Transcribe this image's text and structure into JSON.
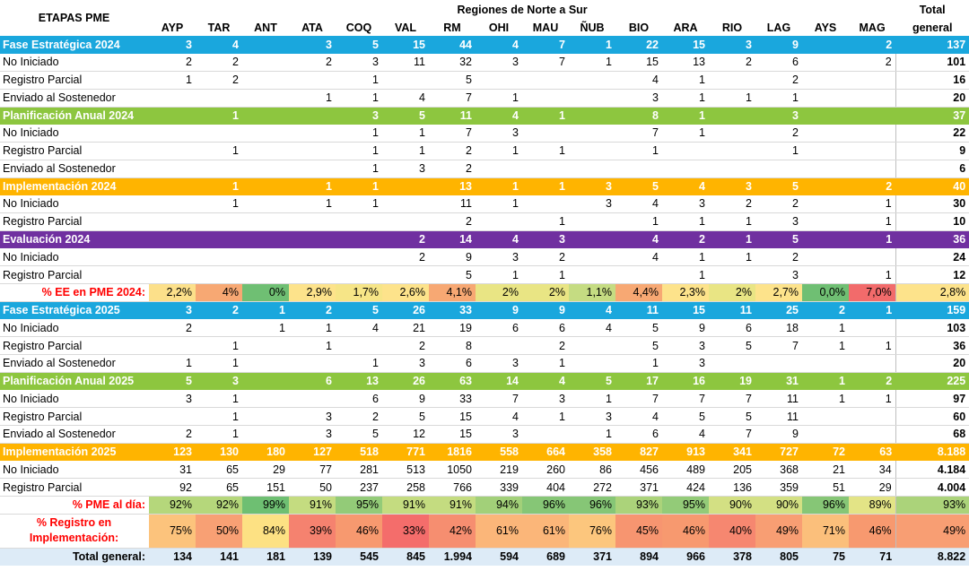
{
  "header": {
    "etapas": "ETAPAS PME",
    "regiones": "Regiones de Norte a Sur",
    "total_l1": "Total",
    "total_l2": "general",
    "columns": [
      "AYP",
      "TAR",
      "ANT",
      "ATA",
      "COQ",
      "VAL",
      "RM",
      "OHI",
      "MAU",
      "ÑUB",
      "BIO",
      "ARA",
      "RIO",
      "LAG",
      "AYS",
      "MAG"
    ]
  },
  "rows": [
    {
      "kind": "phase",
      "color": "est",
      "label": "Fase Estratégica 2024",
      "values": [
        "3",
        "4",
        "",
        "3",
        "5",
        "15",
        "44",
        "4",
        "7",
        "1",
        "22",
        "15",
        "3",
        "9",
        "",
        "2"
      ],
      "total": "137"
    },
    {
      "kind": "data",
      "label": "No Iniciado",
      "values": [
        "2",
        "2",
        "",
        "2",
        "3",
        "11",
        "32",
        "3",
        "7",
        "1",
        "15",
        "13",
        "2",
        "6",
        "",
        "2"
      ],
      "total": "101"
    },
    {
      "kind": "data",
      "label": "Registro Parcial",
      "values": [
        "1",
        "2",
        "",
        "",
        "1",
        "",
        "5",
        "",
        "",
        "",
        "4",
        "1",
        "",
        "2",
        "",
        ""
      ],
      "total": "16"
    },
    {
      "kind": "data",
      "label": "Enviado al Sostenedor",
      "values": [
        "",
        "",
        "",
        "1",
        "1",
        "4",
        "7",
        "1",
        "",
        "",
        "3",
        "1",
        "1",
        "1",
        "",
        ""
      ],
      "total": "20"
    },
    {
      "kind": "phase",
      "color": "plan",
      "label": "Planificación Anual 2024",
      "values": [
        "",
        "1",
        "",
        "",
        "3",
        "5",
        "11",
        "4",
        "1",
        "",
        "8",
        "1",
        "",
        "3",
        "",
        ""
      ],
      "total": "37"
    },
    {
      "kind": "data",
      "label": "No Iniciado",
      "values": [
        "",
        "",
        "",
        "",
        "1",
        "1",
        "7",
        "3",
        "",
        "",
        "7",
        "1",
        "",
        "2",
        "",
        ""
      ],
      "total": "22"
    },
    {
      "kind": "data",
      "label": "Registro Parcial",
      "values": [
        "",
        "1",
        "",
        "",
        "1",
        "1",
        "2",
        "1",
        "1",
        "",
        "1",
        "",
        "",
        "1",
        "",
        ""
      ],
      "total": "9"
    },
    {
      "kind": "data",
      "label": "Enviado al Sostenedor",
      "values": [
        "",
        "",
        "",
        "",
        "1",
        "3",
        "2",
        "",
        "",
        "",
        "",
        "",
        "",
        "",
        "",
        ""
      ],
      "total": "6"
    },
    {
      "kind": "phase",
      "color": "impl",
      "label": "Implementación 2024",
      "values": [
        "",
        "1",
        "",
        "1",
        "1",
        "",
        "13",
        "1",
        "1",
        "3",
        "5",
        "4",
        "3",
        "5",
        "",
        "2"
      ],
      "total": "40"
    },
    {
      "kind": "data",
      "label": "No Iniciado",
      "values": [
        "",
        "1",
        "",
        "1",
        "1",
        "",
        "11",
        "1",
        "",
        "3",
        "4",
        "3",
        "2",
        "2",
        "",
        "1"
      ],
      "total": "30"
    },
    {
      "kind": "data",
      "label": "Registro Parcial",
      "values": [
        "",
        "",
        "",
        "",
        "",
        "",
        "2",
        "",
        "1",
        "",
        "1",
        "1",
        "1",
        "3",
        "",
        "1"
      ],
      "total": "10"
    },
    {
      "kind": "phase",
      "color": "eval",
      "label": "Evaluación 2024",
      "values": [
        "",
        "",
        "",
        "",
        "",
        "2",
        "14",
        "4",
        "3",
        "",
        "4",
        "2",
        "1",
        "5",
        "",
        "1"
      ],
      "total": "36"
    },
    {
      "kind": "data",
      "label": "No Iniciado",
      "values": [
        "",
        "",
        "",
        "",
        "",
        "2",
        "9",
        "3",
        "2",
        "",
        "4",
        "1",
        "1",
        "2",
        "",
        ""
      ],
      "total": "24"
    },
    {
      "kind": "data",
      "label": "Registro Parcial",
      "values": [
        "",
        "",
        "",
        "",
        "",
        "",
        "5",
        "1",
        "1",
        "",
        "",
        "1",
        "",
        "3",
        "",
        "1"
      ],
      "total": "12"
    },
    {
      "kind": "pct",
      "label": "% EE en PME 2024:",
      "values": [
        "2,2%",
        "4%",
        "0%",
        "2,9%",
        "1,7%",
        "2,6%",
        "4,1%",
        "2%",
        "2%",
        "1,1%",
        "4,4%",
        "2,3%",
        "2%",
        "2,7%",
        "0,0%",
        "7,0%"
      ],
      "total": "2,8%",
      "colors": [
        "#fce08a",
        "#f7a873",
        "#6fbf73",
        "#fde38b",
        "#f6e587",
        "#fde38b",
        "#f7a873",
        "#e9e584",
        "#e9e584",
        "#c5dc82",
        "#f7a873",
        "#fde38b",
        "#e9e584",
        "#fde38b",
        "#6fbf73",
        "#f26b6b"
      ],
      "total_color": "#fde38b"
    },
    {
      "kind": "phase",
      "color": "est",
      "label": "Fase Estratégica 2025",
      "values": [
        "3",
        "2",
        "1",
        "2",
        "5",
        "26",
        "33",
        "9",
        "9",
        "4",
        "11",
        "15",
        "11",
        "25",
        "2",
        "1"
      ],
      "total": "159"
    },
    {
      "kind": "data",
      "label": "No Iniciado",
      "values": [
        "2",
        "",
        "1",
        "1",
        "4",
        "21",
        "19",
        "6",
        "6",
        "4",
        "5",
        "9",
        "6",
        "18",
        "1",
        ""
      ],
      "total": "103"
    },
    {
      "kind": "data",
      "label": "Registro Parcial",
      "values": [
        "",
        "1",
        "",
        "1",
        "",
        "2",
        "8",
        "",
        "2",
        "",
        "5",
        "3",
        "5",
        "7",
        "1",
        "1"
      ],
      "total": "36"
    },
    {
      "kind": "data",
      "label": "Enviado al Sostenedor",
      "values": [
        "1",
        "1",
        "",
        "",
        "1",
        "3",
        "6",
        "3",
        "1",
        "",
        "1",
        "3",
        "",
        "",
        "",
        ""
      ],
      "total": "20"
    },
    {
      "kind": "phase",
      "color": "plan",
      "label": "Planificación Anual 2025",
      "values": [
        "5",
        "3",
        "",
        "6",
        "13",
        "26",
        "63",
        "14",
        "4",
        "5",
        "17",
        "16",
        "19",
        "31",
        "1",
        "2"
      ],
      "total": "225"
    },
    {
      "kind": "data",
      "label": "No Iniciado",
      "values": [
        "3",
        "1",
        "",
        "",
        "6",
        "9",
        "33",
        "7",
        "3",
        "1",
        "7",
        "7",
        "7",
        "11",
        "1",
        "1"
      ],
      "total": "97"
    },
    {
      "kind": "data",
      "label": "Registro Parcial",
      "values": [
        "",
        "1",
        "",
        "3",
        "2",
        "5",
        "15",
        "4",
        "1",
        "3",
        "4",
        "5",
        "5",
        "11",
        "",
        ""
      ],
      "total": "60"
    },
    {
      "kind": "data",
      "label": "Enviado al Sostenedor",
      "values": [
        "2",
        "1",
        "",
        "3",
        "5",
        "12",
        "15",
        "3",
        "",
        "1",
        "6",
        "4",
        "7",
        "9",
        "",
        ""
      ],
      "total": "68"
    },
    {
      "kind": "phase",
      "color": "impl",
      "label": "Implementación 2025",
      "values": [
        "123",
        "130",
        "180",
        "127",
        "518",
        "771",
        "1816",
        "558",
        "664",
        "358",
        "827",
        "913",
        "341",
        "727",
        "72",
        "63"
      ],
      "total": "8.188"
    },
    {
      "kind": "data",
      "label": "No Iniciado",
      "values": [
        "31",
        "65",
        "29",
        "77",
        "281",
        "513",
        "1050",
        "219",
        "260",
        "86",
        "456",
        "489",
        "205",
        "368",
        "21",
        "34"
      ],
      "total": "4.184"
    },
    {
      "kind": "data",
      "label": "Registro Parcial",
      "values": [
        "92",
        "65",
        "151",
        "50",
        "237",
        "258",
        "766",
        "339",
        "404",
        "272",
        "371",
        "424",
        "136",
        "359",
        "51",
        "29"
      ],
      "total": "4.004"
    },
    {
      "kind": "pct",
      "label": "% PME al día:",
      "values": [
        "92%",
        "92%",
        "99%",
        "91%",
        "95%",
        "91%",
        "91%",
        "94%",
        "96%",
        "96%",
        "93%",
        "95%",
        "90%",
        "90%",
        "96%",
        "89%"
      ],
      "total": "93%",
      "colors": [
        "#b5d77b",
        "#b5d77b",
        "#6ebf72",
        "#c4dc80",
        "#93cb78",
        "#c4dc80",
        "#c4dc80",
        "#a2d079",
        "#86c676",
        "#86c676",
        "#abd37a",
        "#93cb78",
        "#d3e083",
        "#d3e083",
        "#86c676",
        "#e3e486"
      ],
      "total_color": "#abd37a"
    },
    {
      "kind": "pct2",
      "label": "% Registro en Implementación:",
      "values": [
        "75%",
        "50%",
        "84%",
        "39%",
        "46%",
        "33%",
        "42%",
        "61%",
        "61%",
        "76%",
        "45%",
        "46%",
        "40%",
        "49%",
        "71%",
        "46%"
      ],
      "total": "49%",
      "colors": [
        "#fcc37c",
        "#f8a074",
        "#fde183",
        "#f5826f",
        "#f7996f",
        "#f46d6b",
        "#f68e70",
        "#fbb679",
        "#fbb679",
        "#fcc67d",
        "#f79570",
        "#f7996f",
        "#f68770",
        "#f89e73",
        "#fbbf7b",
        "#f7996f"
      ],
      "total_color": "#f89e73"
    },
    {
      "kind": "total",
      "label": "Total general:",
      "values": [
        "134",
        "141",
        "181",
        "139",
        "545",
        "845",
        "1.994",
        "594",
        "689",
        "371",
        "894",
        "966",
        "378",
        "805",
        "75",
        "71"
      ],
      "total": "8.822"
    }
  ]
}
